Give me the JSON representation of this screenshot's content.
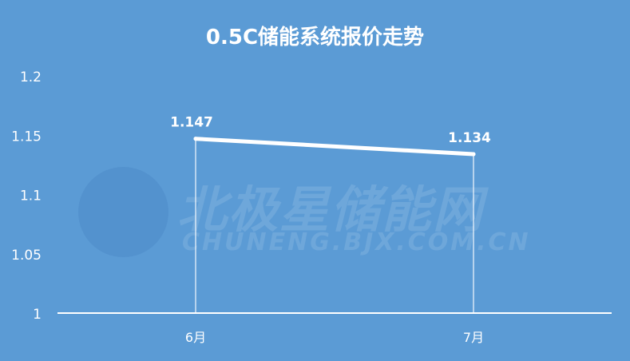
{
  "title": "0.5C储能系统报价走势",
  "watermark": {
    "cn": "北极星储能网",
    "en": "CHUNENG.BJX.COM.CN"
  },
  "colors": {
    "background": "#5b9bd5",
    "line": "#ffffff"
  },
  "chart_data": {
    "type": "line",
    "title": "0.5C储能系统报价走势",
    "categories": [
      "6月",
      "7月"
    ],
    "series": [
      {
        "values": [
          1.147,
          1.134
        ]
      }
    ],
    "data_labels": [
      "1.147",
      "1.134"
    ],
    "ylim": [
      1,
      1.2
    ],
    "yticks": [
      "1",
      "1.05",
      "1.1",
      "1.15",
      "1.2"
    ],
    "grid": false,
    "drop_lines": true
  }
}
